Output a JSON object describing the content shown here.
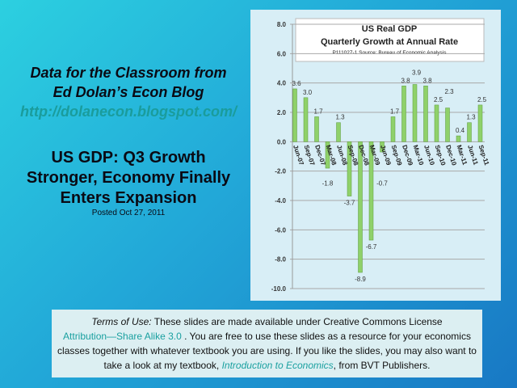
{
  "left": {
    "blog_line1": "Data for the Classroom from",
    "blog_line2": "Ed Dolan’s Econ Blog",
    "blog_url": "http://dolanecon.blogspot.com/",
    "headline_line1": "US GDP: Q3 Growth",
    "headline_line2": "Stronger, Economy Finally",
    "headline_line3": "Enters Expansion",
    "posted": "Posted  Oct 27, 2011"
  },
  "terms": {
    "label": "Terms of Use:",
    "text1": " These slides are made available under Creative Commons License",
    "license_link": "Attribution—Share Alike 3.0",
    "text2": " . You are free to use these slides as a resource for your economics classes together with whatever textbook you are using. If you like the slides, you may also want to take a look at my textbook, ",
    "book_link": "Introduction to Economics",
    "text3": ", from BVT Publishers."
  },
  "chart_data": {
    "type": "bar",
    "title": "US  Real GDP",
    "subtitle": "Quarterly Growth at Annual Rate",
    "source": "P111027-1 Source: Bureau of Economic Analysis",
    "categories": [
      "Jun-07",
      "Sep-07",
      "Dec-07",
      "Mar-08",
      "Jun-08",
      "Sep-08",
      "Dec-08",
      "Mar-09",
      "Jun-09",
      "Sep-09",
      "Dec-09",
      "Mar-10",
      "Jun-10",
      "Sep-10",
      "Dec-10",
      "Mar-11",
      "Jun-11",
      "Sep-11"
    ],
    "values": [
      3.6,
      3.0,
      1.7,
      -1.8,
      1.3,
      -3.7,
      -8.9,
      -6.7,
      -0.7,
      1.7,
      3.8,
      3.9,
      3.8,
      2.5,
      2.3,
      0.4,
      1.3,
      2.5
    ],
    "ylim": [
      -10,
      8
    ],
    "yticks": [
      "8.0",
      "6.0",
      "4.0",
      "2.0",
      "0.0",
      "-2.0",
      "-4.0",
      "-6.0",
      "-8.0",
      "-10.0"
    ],
    "grid": true,
    "bar_color": "#8fd16a"
  }
}
